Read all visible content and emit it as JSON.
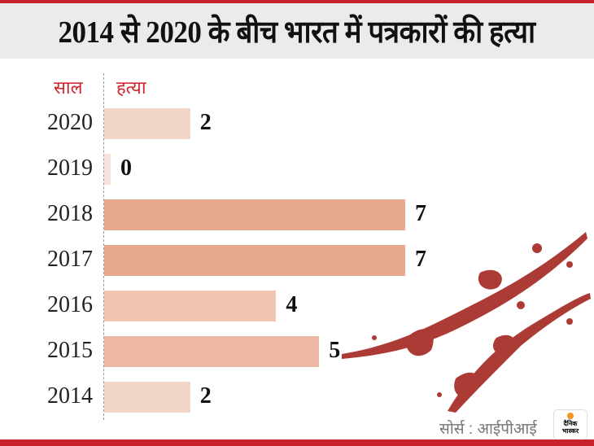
{
  "chart_data": {
    "type": "bar",
    "title": "2014 से 2020 के बीच भारत में पत्रकारों की हत्या",
    "xlabel": "हत्या",
    "ylabel": "साल",
    "categories": [
      "2020",
      "2019",
      "2018",
      "2017",
      "2016",
      "2015",
      "2014"
    ],
    "values": [
      2,
      0,
      7,
      7,
      4,
      5,
      2
    ],
    "colors": [
      "#f2d6c9",
      "#f5e3db",
      "#e8a78f",
      "#e8a78f",
      "#efc4b1",
      "#edb8a3",
      "#f2d6c9"
    ],
    "xlim": [
      0,
      7
    ]
  },
  "source": "सोर्स : आईपीआई",
  "logo": {
    "line1": "दैनिक",
    "line2": "भास्कर"
  },
  "accent": "#c8232b"
}
